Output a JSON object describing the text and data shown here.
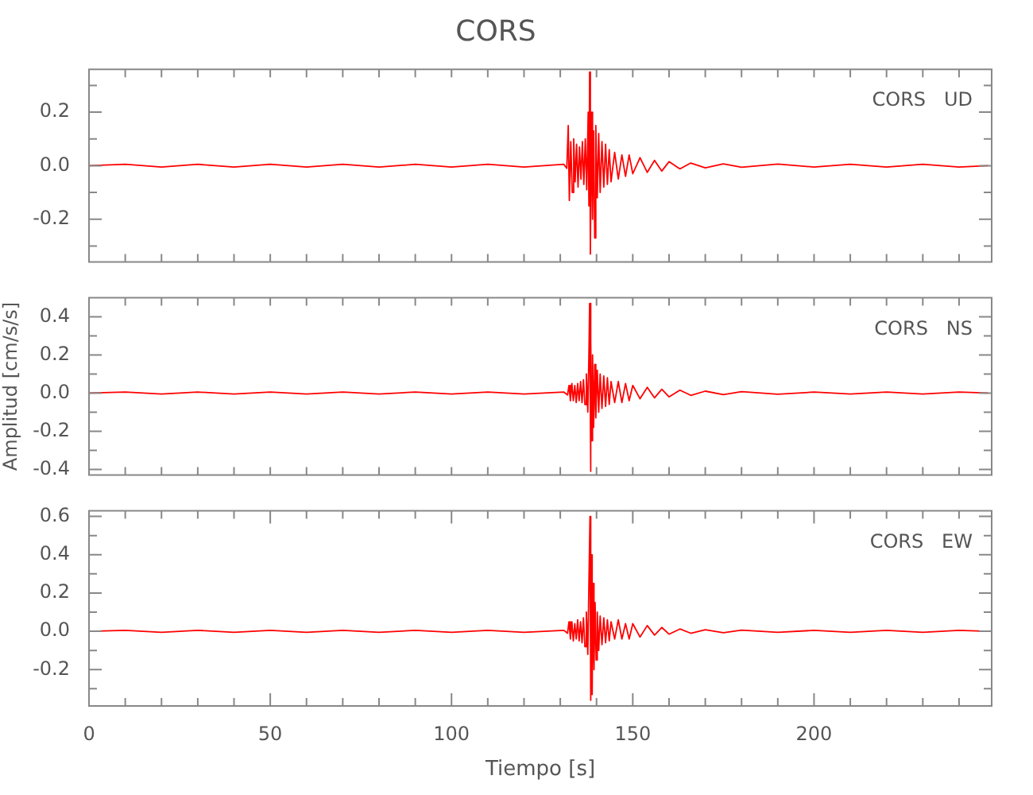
{
  "chart_data": [
    {
      "type": "line",
      "title": "CORS",
      "annotations": [
        "CORS   UD"
      ],
      "xlim": [
        0,
        249
      ],
      "xticks": [
        {
          "value": 0,
          "label": null
        },
        {
          "value": 10,
          "label": null
        },
        {
          "value": 20,
          "label": null
        },
        {
          "value": 30,
          "label": null
        },
        {
          "value": 40,
          "label": null
        },
        {
          "value": 50,
          "label": null
        },
        {
          "value": 60,
          "label": null
        },
        {
          "value": 70,
          "label": null
        },
        {
          "value": 80,
          "label": null
        },
        {
          "value": 90,
          "label": null
        },
        {
          "value": 100,
          "label": null
        },
        {
          "value": 110,
          "label": null
        },
        {
          "value": 120,
          "label": null
        },
        {
          "value": 130,
          "label": null
        },
        {
          "value": 140,
          "label": null
        },
        {
          "value": 150,
          "label": null
        },
        {
          "value": 160,
          "label": null
        },
        {
          "value": 170,
          "label": null
        },
        {
          "value": 180,
          "label": null
        },
        {
          "value": 190,
          "label": null
        },
        {
          "value": 200,
          "label": null
        },
        {
          "value": 210,
          "label": null
        },
        {
          "value": 220,
          "label": null
        },
        {
          "value": 230,
          "label": null
        },
        {
          "value": 240,
          "label": null
        }
      ],
      "ylim": [
        -0.36,
        0.36
      ],
      "yticks": [
        {
          "value": -0.3,
          "label": null
        },
        -0.2,
        {
          "value": -0.1,
          "label": null
        },
        {
          "value": 0,
          "label": "0.0"
        },
        {
          "value": 0.1,
          "label": null
        },
        0.2,
        {
          "value": 0.3,
          "label": null
        }
      ],
      "grid": false,
      "marker": "none",
      "tick_labels": "y",
      "series": [
        {
          "color": "#ff0000",
          "x": [
            0,
            10,
            20,
            30,
            40,
            50,
            60,
            70,
            80,
            90,
            100,
            110,
            120,
            131,
            131.8,
            132.2,
            132.5,
            132.9,
            133.3,
            133.7,
            134.1,
            134.5,
            134.9,
            135.3,
            135.7,
            136.1,
            136.5,
            136.9,
            137.3,
            137.7,
            137.9,
            138.1,
            138.3,
            138.6,
            138.9,
            139.2,
            139.5,
            139.8,
            140.2,
            140.6,
            141,
            141.5,
            142,
            142.5,
            143,
            143.5,
            144,
            145,
            146,
            147,
            148,
            149,
            150,
            152,
            154,
            156,
            158,
            160,
            163,
            166,
            170,
            175,
            180,
            190,
            200,
            210,
            220,
            230,
            240,
            248
          ],
          "values": [
            0,
            0.005,
            -0.005,
            0.005,
            -0.005,
            0.005,
            -0.005,
            0.005,
            -0.005,
            0.005,
            -0.005,
            0.005,
            -0.005,
            0.005,
            -0.01,
            0.15,
            -0.13,
            0.09,
            -0.1,
            0.1,
            -0.06,
            0.08,
            -0.08,
            0.07,
            -0.05,
            0.09,
            -0.07,
            0.1,
            -0.09,
            0.2,
            -0.15,
            0.35,
            -0.33,
            0.2,
            -0.2,
            0.13,
            -0.27,
            0.15,
            -0.12,
            0.12,
            -0.1,
            0.09,
            -0.08,
            0.08,
            -0.07,
            0.06,
            -0.06,
            0.05,
            -0.05,
            0.04,
            -0.04,
            0.04,
            -0.03,
            0.03,
            -0.025,
            0.02,
            -0.02,
            0.015,
            -0.012,
            0.01,
            -0.008,
            0.007,
            -0.006,
            0.006,
            -0.005,
            0.005,
            -0.005,
            0.005,
            -0.005,
            0
          ]
        }
      ]
    },
    {
      "type": "line",
      "ylabel": "Amplitud [cm/s/s]",
      "annotations": [
        "CORS   NS"
      ],
      "xlim": [
        0,
        249
      ],
      "xticks": [
        {
          "value": 0,
          "label": null
        },
        {
          "value": 10,
          "label": null
        },
        {
          "value": 20,
          "label": null
        },
        {
          "value": 30,
          "label": null
        },
        {
          "value": 40,
          "label": null
        },
        {
          "value": 50,
          "label": null
        },
        {
          "value": 60,
          "label": null
        },
        {
          "value": 70,
          "label": null
        },
        {
          "value": 80,
          "label": null
        },
        {
          "value": 90,
          "label": null
        },
        {
          "value": 100,
          "label": null
        },
        {
          "value": 110,
          "label": null
        },
        {
          "value": 120,
          "label": null
        },
        {
          "value": 130,
          "label": null
        },
        {
          "value": 140,
          "label": null
        },
        {
          "value": 150,
          "label": null
        },
        {
          "value": 160,
          "label": null
        },
        {
          "value": 170,
          "label": null
        },
        {
          "value": 180,
          "label": null
        },
        {
          "value": 190,
          "label": null
        },
        {
          "value": 200,
          "label": null
        },
        {
          "value": 210,
          "label": null
        },
        {
          "value": 220,
          "label": null
        },
        {
          "value": 230,
          "label": null
        },
        {
          "value": 240,
          "label": null
        }
      ],
      "ylim": [
        -0.43,
        0.5
      ],
      "yticks": [
        -0.4,
        {
          "value": -0.3,
          "label": null
        },
        -0.2,
        {
          "value": -0.1,
          "label": null
        },
        {
          "value": 0,
          "label": "0.0"
        },
        {
          "value": 0.1,
          "label": null
        },
        0.2,
        {
          "value": 0.3,
          "label": null
        },
        0.4
      ],
      "grid": false,
      "marker": "none",
      "tick_labels": "y",
      "series": [
        {
          "color": "#ff0000",
          "x": [
            0,
            10,
            20,
            30,
            40,
            50,
            60,
            70,
            80,
            90,
            100,
            110,
            120,
            131,
            132,
            132.4,
            132.8,
            133.2,
            133.6,
            134,
            134.4,
            134.8,
            135.2,
            135.6,
            136,
            136.4,
            136.8,
            137.2,
            137.6,
            137.9,
            138.1,
            138.3,
            138.5,
            138.7,
            138.9,
            139.2,
            139.5,
            139.8,
            140.2,
            140.6,
            141,
            141.5,
            142,
            142.5,
            143,
            143.5,
            144,
            145,
            146,
            147,
            148,
            149,
            150,
            152,
            154,
            156,
            158,
            160,
            163,
            166,
            170,
            175,
            180,
            190,
            200,
            210,
            220,
            230,
            240,
            248
          ],
          "values": [
            0,
            0.005,
            -0.005,
            0.005,
            -0.005,
            0.005,
            -0.005,
            0.005,
            -0.005,
            0.005,
            -0.005,
            0.005,
            -0.005,
            0.005,
            -0.01,
            0.04,
            -0.04,
            0.05,
            -0.04,
            0.04,
            -0.05,
            0.05,
            -0.04,
            0.06,
            -0.05,
            0.07,
            -0.06,
            0.1,
            -0.1,
            0.2,
            0.47,
            -0.41,
            0.27,
            -0.25,
            0.2,
            -0.18,
            0.15,
            -0.13,
            0.12,
            -0.1,
            0.1,
            -0.08,
            0.09,
            -0.07,
            0.08,
            -0.06,
            0.06,
            -0.05,
            0.06,
            -0.05,
            0.05,
            -0.04,
            0.04,
            -0.03,
            0.03,
            -0.025,
            0.02,
            -0.02,
            0.015,
            -0.012,
            0.01,
            -0.008,
            0.007,
            -0.006,
            0.005,
            -0.005,
            0.005,
            -0.005,
            0.005,
            0
          ]
        }
      ]
    },
    {
      "type": "line",
      "xlabel": "Tiempo [s]",
      "annotations": [
        "CORS   EW"
      ],
      "xlim": [
        0,
        249
      ],
      "xticks": [
        0,
        {
          "value": 10,
          "label": null
        },
        {
          "value": 20,
          "label": null
        },
        {
          "value": 30,
          "label": null
        },
        {
          "value": 40,
          "label": null
        },
        50,
        {
          "value": 60,
          "label": null
        },
        {
          "value": 70,
          "label": null
        },
        {
          "value": 80,
          "label": null
        },
        {
          "value": 90,
          "label": null
        },
        100,
        {
          "value": 110,
          "label": null
        },
        {
          "value": 120,
          "label": null
        },
        {
          "value": 130,
          "label": null
        },
        {
          "value": 140,
          "label": null
        },
        150,
        {
          "value": 160,
          "label": null
        },
        {
          "value": 170,
          "label": null
        },
        {
          "value": 180,
          "label": null
        },
        {
          "value": 190,
          "label": null
        },
        200,
        {
          "value": 210,
          "label": null
        },
        {
          "value": 220,
          "label": null
        },
        {
          "value": 230,
          "label": null
        },
        {
          "value": 240,
          "label": null
        }
      ],
      "ylim": [
        -0.39,
        0.63
      ],
      "yticks": [
        {
          "value": -0.3,
          "label": null
        },
        -0.2,
        {
          "value": -0.1,
          "label": null
        },
        {
          "value": 0,
          "label": "0.0"
        },
        {
          "value": 0.1,
          "label": null
        },
        0.2,
        {
          "value": 0.3,
          "label": null
        },
        0.4,
        {
          "value": 0.5,
          "label": null
        },
        0.6
      ],
      "grid": false,
      "marker": "none",
      "series": [
        {
          "color": "#ff0000",
          "x": [
            0,
            10,
            20,
            30,
            40,
            50,
            60,
            70,
            80,
            90,
            100,
            110,
            120,
            131,
            132,
            132.4,
            132.8,
            133.2,
            133.6,
            134,
            134.4,
            134.8,
            135.2,
            135.6,
            136,
            136.4,
            136.8,
            137.2,
            137.6,
            137.9,
            138.2,
            138.4,
            138.6,
            138.8,
            139,
            139.3,
            139.6,
            139.9,
            140.2,
            140.6,
            141,
            141.5,
            142,
            142.5,
            143,
            143.5,
            144,
            145,
            146,
            147,
            148,
            149,
            150,
            152,
            154,
            156,
            158,
            160,
            163,
            166,
            170,
            175,
            180,
            190,
            200,
            210,
            220,
            230,
            240,
            248
          ],
          "values": [
            0,
            0.005,
            -0.005,
            0.005,
            -0.005,
            0.005,
            -0.005,
            0.005,
            -0.005,
            0.005,
            -0.005,
            0.005,
            -0.005,
            0.005,
            -0.01,
            0.05,
            -0.04,
            0.05,
            -0.05,
            0.04,
            -0.04,
            0.06,
            -0.05,
            0.05,
            -0.06,
            0.07,
            -0.08,
            0.1,
            -0.12,
            0.25,
            0.6,
            -0.36,
            0.4,
            -0.33,
            0.25,
            -0.2,
            0.15,
            -0.15,
            0.1,
            -0.1,
            0.08,
            -0.07,
            0.07,
            -0.06,
            0.06,
            -0.05,
            0.05,
            -0.04,
            0.06,
            -0.04,
            0.04,
            -0.04,
            0.04,
            -0.03,
            0.03,
            -0.02,
            0.02,
            -0.015,
            0.012,
            -0.01,
            0.008,
            -0.007,
            0.006,
            -0.005,
            0.005,
            -0.005,
            0.005,
            -0.005,
            0.005,
            0
          ]
        }
      ]
    }
  ]
}
